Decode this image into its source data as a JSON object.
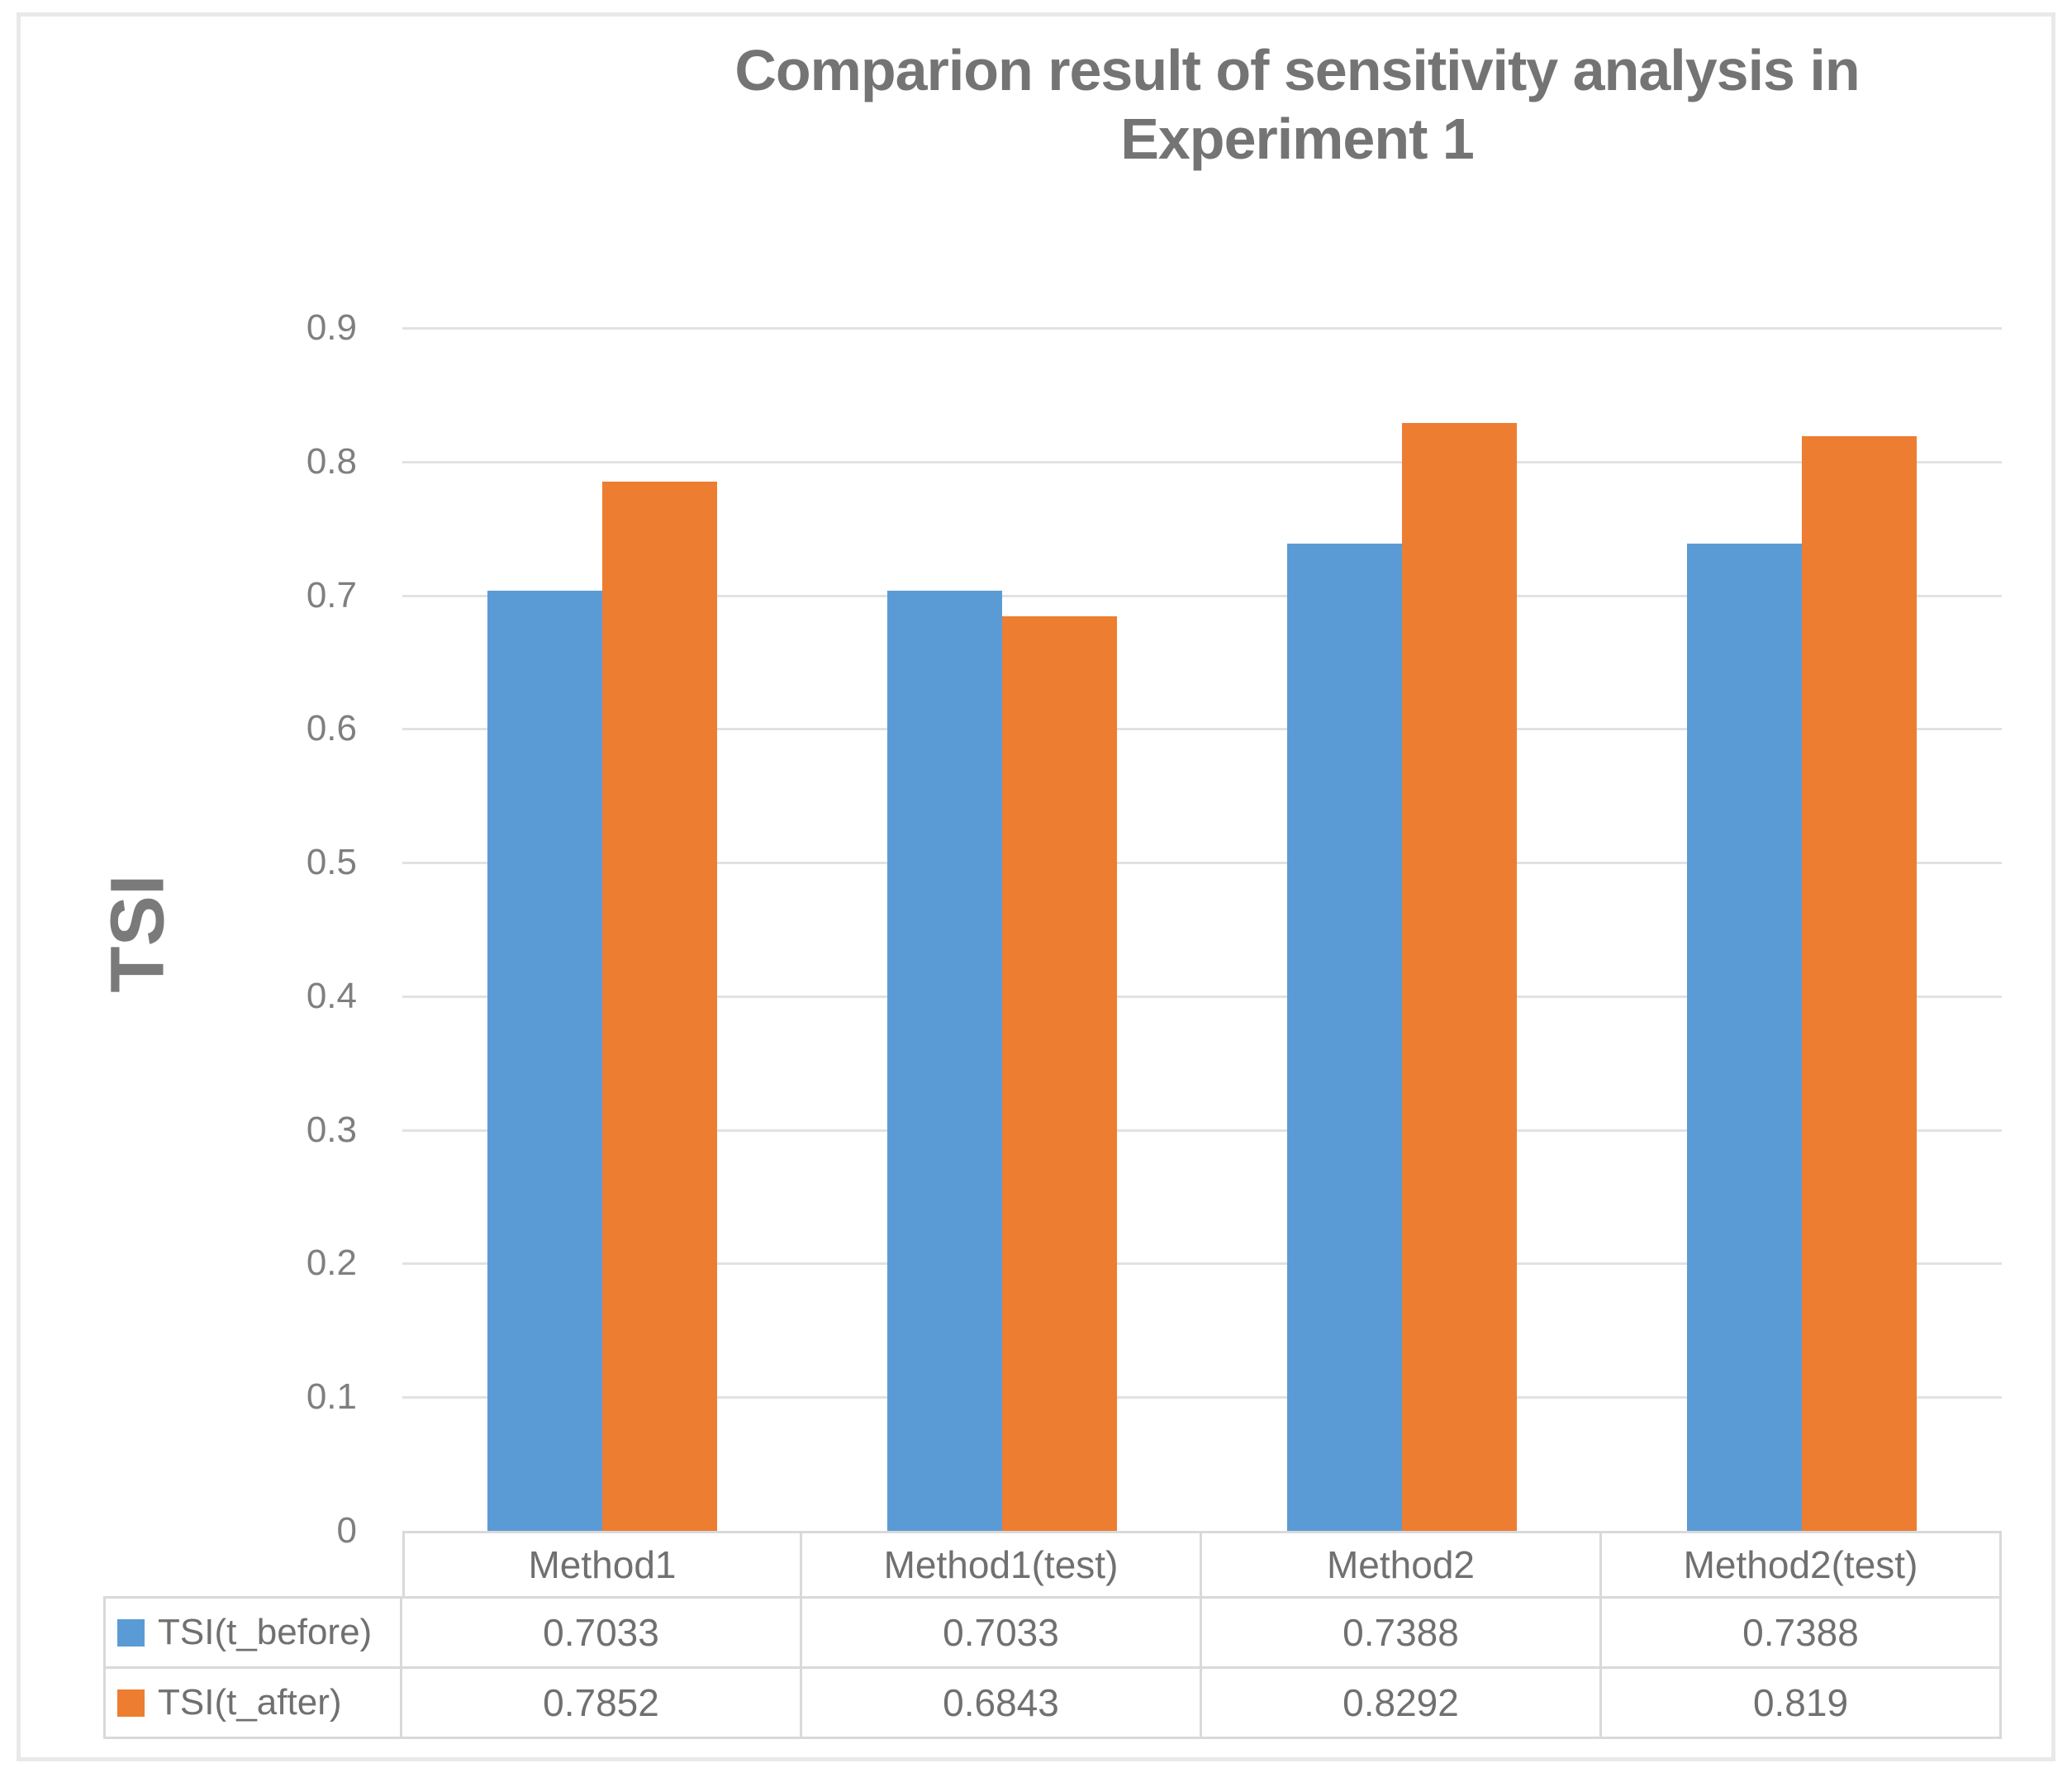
{
  "header": {
    "title_lines": [
      "Comparion result of sensitivity analysis in",
      "Experiment 1"
    ]
  },
  "axes": {
    "y_title": "TSI"
  },
  "chart_data": {
    "type": "bar",
    "title": "Comparion result of sensitivity analysis in Experiment 1",
    "xlabel": "",
    "ylabel": "TSI",
    "categories": [
      "Method1",
      "Method1(test)",
      "Method2",
      "Method2(test)"
    ],
    "series": [
      {
        "name": "TSI(t_before)",
        "color": "#5B9BD5",
        "values": [
          0.7033,
          0.7033,
          0.7388,
          0.7388
        ],
        "display_values": [
          "0.7033",
          "0.7033",
          "0.7388",
          "0.7388"
        ]
      },
      {
        "name": "TSI(t_after)",
        "color": "#ED7D31",
        "values": [
          0.7852,
          0.6843,
          0.8292,
          0.819
        ],
        "display_values": [
          "0.7852",
          "0.6843",
          "0.8292",
          "0.819"
        ]
      }
    ],
    "ylim": [
      0,
      0.9
    ],
    "ytick_labels": [
      "0",
      "0.1",
      "0.2",
      "0.3",
      "0.4",
      "0.5",
      "0.6",
      "0.7",
      "0.8",
      "0.9"
    ],
    "grid": true,
    "legend_position": "data-table-left"
  },
  "colors": {
    "series_before": "#5B9BD5",
    "series_after": "#ED7D31",
    "title_text": "#747474",
    "axis_text": "#7f7f7f",
    "gridline": "#e2e2e2",
    "table_border": "#d9d9d9"
  }
}
